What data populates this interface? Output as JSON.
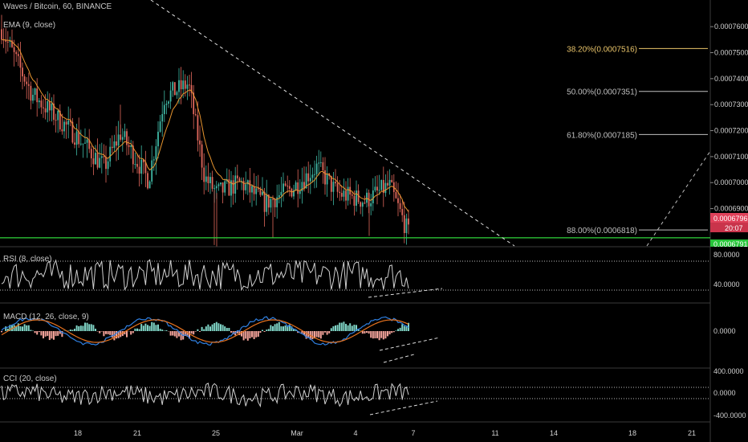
{
  "colors": {
    "background": "#000000",
    "up": "#3fb7a4",
    "down": "#e0685c",
    "ema": "#e8952f",
    "fib_top": "#e9c46a",
    "fib": "#bfbfbf",
    "support": "#2fd53a",
    "trendline": "#e0e0e0",
    "last_price_badge": "#e0415a",
    "countdown_badge": "#e0415a",
    "green_badge": "#27c43a",
    "rsi": "#d0d0d0",
    "macd_line": "#2f7fe0",
    "signal_line": "#e8731f",
    "hist_up": "#7fd4c6",
    "hist_down": "#f3a39a",
    "cci": "#d0d0d0"
  },
  "header": {
    "title": "Waves / Bitcoin, 60, BINANCE",
    "indicator": "EMA (9, close)"
  },
  "chart_data": [
    {
      "type": "candlestick",
      "pane": "price",
      "series": [
        {
          "name": "Waves / Bitcoin, 60, BINANCE"
        },
        {
          "name": "EMA (9, close)"
        }
      ],
      "y_ticks": [
        "0.0007600",
        "0.0007500",
        "0.0007400",
        "0.0007300",
        "0.0007200",
        "0.0007100",
        "0.0007000",
        "0.0006900"
      ],
      "ylim": [
        0.00067534,
        0.00077026
      ],
      "fib_levels": [
        {
          "label": "38.20%(0.0007516)",
          "value": 0.0007516
        },
        {
          "label": "50.00%(0.0007351)",
          "value": 0.0007351
        },
        {
          "label": "61.80%(0.0007185)",
          "value": 0.0007185
        },
        {
          "label": "88.00%(0.0006818)",
          "value": 0.0006818
        }
      ],
      "support_level": 0.00067878,
      "last_price": "0.0006796",
      "countdown": "20:07",
      "green_badge": "0.0006791"
    },
    {
      "type": "line",
      "pane": "rsi",
      "title": "RSI (8, close)",
      "y_ticks": [
        "80.0000",
        "40.0000"
      ],
      "ylim": [
        12,
        95
      ],
      "bands": [
        80,
        30
      ]
    },
    {
      "type": "line",
      "pane": "macd",
      "title": "MACD (12, 26, close, 9)",
      "y_ticks": [
        "0.0000"
      ],
      "series": [
        {
          "name": "MACD"
        },
        {
          "name": "Signal"
        },
        {
          "name": "Histogram"
        }
      ]
    },
    {
      "type": "line",
      "pane": "cci",
      "title": "CCI (20, close)",
      "y_ticks": [
        "400.0000",
        "0.0000",
        "-400.0000"
      ],
      "ylim": [
        -500,
        500
      ],
      "bands": [
        100,
        -100
      ]
    }
  ],
  "x_axis": {
    "ticks": [
      "18",
      "21",
      "25",
      "Mar",
      "4",
      "7",
      "11",
      "14",
      "18",
      "21"
    ]
  }
}
